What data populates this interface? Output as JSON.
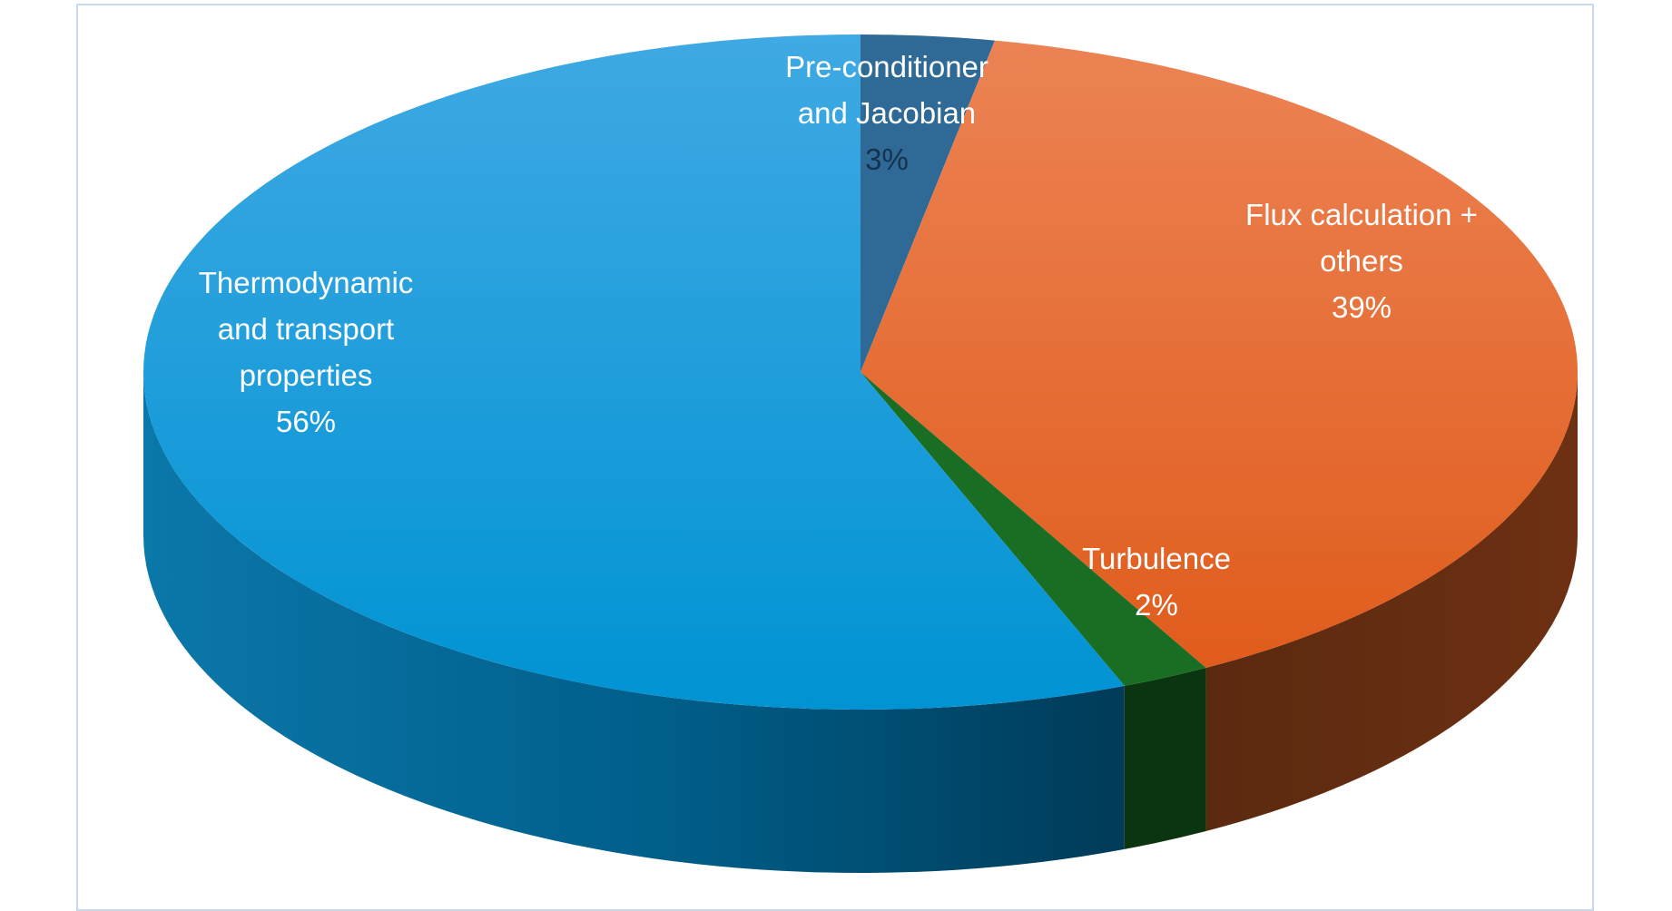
{
  "chart_data": {
    "type": "pie",
    "style": "3d",
    "title": "",
    "slices": [
      {
        "name": "Pre-conditioner and Jacobian",
        "label_lines": [
          "Pre-conditioner",
          "and Jacobian"
        ],
        "percent_label": "3%",
        "value": 3,
        "color": "#2f6a96",
        "side_color": "#1d4565",
        "label_color": "#ffffff",
        "percent_color": "#14324f"
      },
      {
        "name": "Flux calculation + others",
        "label_lines": [
          "Flux calculation +",
          "others"
        ],
        "percent_label": "39%",
        "value": 39,
        "color": "#e8652a",
        "side_color": "#6a2c0f",
        "label_color": "#ffffff",
        "percent_color": "#ffffff"
      },
      {
        "name": "Turbulence",
        "label_lines": [
          "Turbulence"
        ],
        "percent_label": "2%",
        "value": 2,
        "color": "#1a6e24",
        "side_color": "#0b3510",
        "label_color": "#ffffff",
        "percent_color": "#ffffff"
      },
      {
        "name": "Thermodynamic and transport properties",
        "label_lines": [
          "Thermodynamic",
          "and transport",
          "properties"
        ],
        "percent_label": "56%",
        "value": 56,
        "color": "#1a9fde",
        "side_color": "#00628f",
        "label_color": "#ffffff",
        "percent_color": "#ffffff"
      }
    ],
    "start": "12 o'clock",
    "direction": "clockwise",
    "legend": "none",
    "data_labels": "on slices"
  }
}
